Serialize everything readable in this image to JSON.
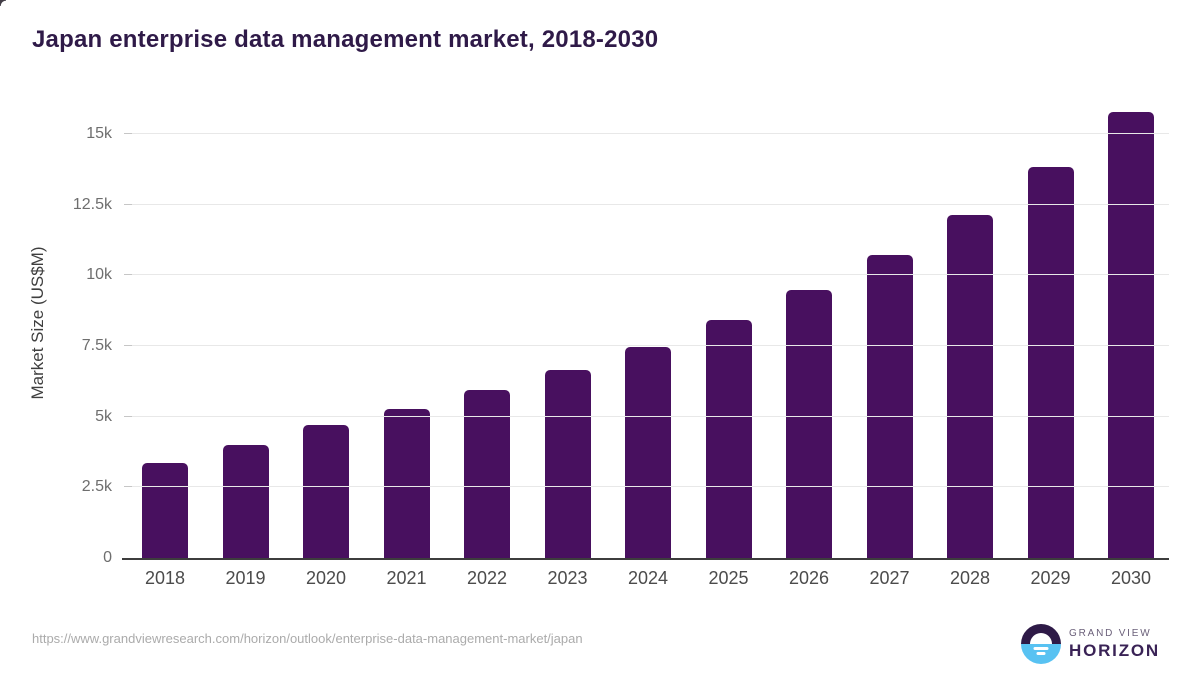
{
  "title": "Japan enterprise data management market, 2018-2030",
  "footer": {
    "source_url": "https://www.grandviewresearch.com/horizon/outlook/enterprise-data-management-market/japan",
    "logo": {
      "icon": "horizon-sunrise-icon",
      "line1": "GRAND VIEW",
      "line2": "HORIZON"
    }
  },
  "colors": {
    "bar": "#48105f",
    "title_text": "#2f1a48",
    "logo_purple": "#2e1a47",
    "logo_blue": "#58c2f2",
    "gridline": "#e8e8e8",
    "axis_line": "#3d3d3d"
  },
  "chart_data": {
    "type": "bar",
    "title": "Japan enterprise data management market, 2018-2030",
    "xlabel": "",
    "ylabel": "Market Size (US$M)",
    "categories": [
      "2018",
      "2019",
      "2020",
      "2021",
      "2022",
      "2023",
      "2024",
      "2025",
      "2026",
      "2027",
      "2028",
      "2029",
      "2030"
    ],
    "values": [
      3370,
      3990,
      4700,
      5270,
      5940,
      6650,
      7470,
      8420,
      9480,
      10720,
      12130,
      13840,
      15780
    ],
    "yticks": [
      {
        "value": 0,
        "label": "0"
      },
      {
        "value": 2500,
        "label": "2.5k"
      },
      {
        "value": 5000,
        "label": "5k"
      },
      {
        "value": 7500,
        "label": "7.5k"
      },
      {
        "value": 10000,
        "label": "10k"
      },
      {
        "value": 12500,
        "label": "12.5k"
      },
      {
        "value": 15000,
        "label": "15k"
      }
    ],
    "ylim": [
      0,
      16200
    ],
    "grid": true,
    "legend": false,
    "bar_color": "#48105f"
  }
}
